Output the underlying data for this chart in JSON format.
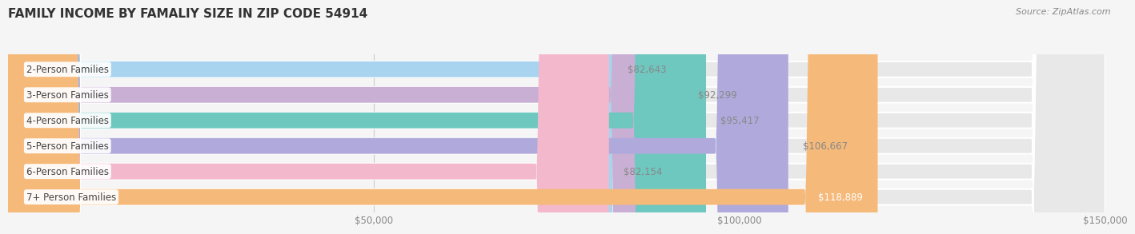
{
  "title": "FAMILY INCOME BY FAMALIY SIZE IN ZIP CODE 54914",
  "source": "Source: ZipAtlas.com",
  "categories": [
    "2-Person Families",
    "3-Person Families",
    "4-Person Families",
    "5-Person Families",
    "6-Person Families",
    "7+ Person Families"
  ],
  "values": [
    82643,
    92299,
    95417,
    106667,
    82154,
    118889
  ],
  "bar_colors": [
    "#a8d4f0",
    "#c9afd4",
    "#6ec8c0",
    "#b0aadc",
    "#f4b8cc",
    "#f5b97a"
  ],
  "value_labels": [
    "$82,643",
    "$92,299",
    "$95,417",
    "$106,667",
    "$82,154",
    "$118,889"
  ],
  "value_label_inside": [
    false,
    false,
    false,
    false,
    false,
    true
  ],
  "xlim": [
    0,
    150000
  ],
  "xticks": [
    50000,
    100000,
    150000
  ],
  "xtick_labels": [
    "$50,000",
    "$100,000",
    "$150,000"
  ],
  "bg_color": "#f5f5f5",
  "bar_bg_color": "#e8e8e8",
  "title_fontsize": 11,
  "bar_height": 0.62,
  "label_fontsize": 8.5,
  "value_fontsize": 8.5
}
